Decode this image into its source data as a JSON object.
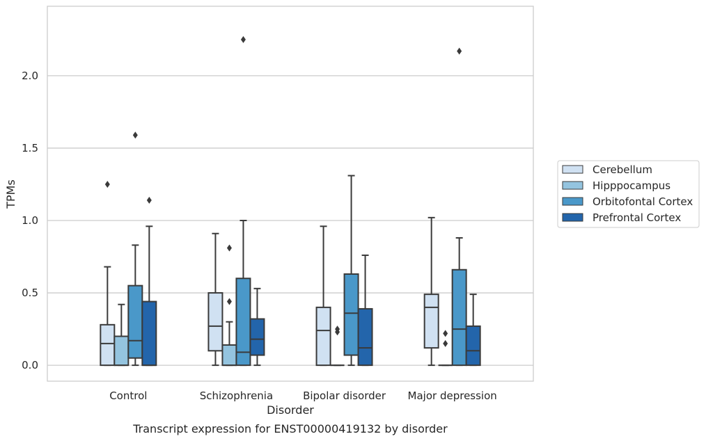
{
  "caption": "Transcript expression for ENST00000419132 by disorder",
  "chart_data": {
    "type": "box",
    "xlabel": "Disorder",
    "ylabel": "TPMs",
    "ylim": [
      -0.11,
      2.48
    ],
    "yticks": [
      0.0,
      0.5,
      1.0,
      1.5,
      2.0
    ],
    "ytick_labels": [
      "0.0",
      "0.5",
      "1.0",
      "1.5",
      "2.0"
    ],
    "grid": "horizontal",
    "legend_position": "right",
    "categories": [
      "Control",
      "Schizophrenia",
      "Bipolar disorder",
      "Major depression"
    ],
    "series": [
      {
        "name": "Cerebellum",
        "color": "#d0e1f2",
        "boxes": [
          {
            "whislo": 0.0,
            "q1": 0.0,
            "med": 0.15,
            "q3": 0.28,
            "whishi": 0.68,
            "fliers": [
              1.25
            ]
          },
          {
            "whislo": 0.0,
            "q1": 0.1,
            "med": 0.27,
            "q3": 0.5,
            "whishi": 0.91,
            "fliers": []
          },
          {
            "whislo": 0.0,
            "q1": 0.0,
            "med": 0.24,
            "q3": 0.4,
            "whishi": 0.96,
            "fliers": []
          },
          {
            "whislo": 0.0,
            "q1": 0.12,
            "med": 0.4,
            "q3": 0.49,
            "whishi": 1.02,
            "fliers": []
          }
        ]
      },
      {
        "name": "Hipppocampus",
        "color": "#94c4df",
        "boxes": [
          {
            "whislo": 0.0,
            "q1": 0.0,
            "med": 0.0,
            "q3": 0.2,
            "whishi": 0.42,
            "fliers": []
          },
          {
            "whislo": 0.0,
            "q1": 0.0,
            "med": 0.0,
            "q3": 0.14,
            "whishi": 0.3,
            "fliers": [
              0.44,
              0.81
            ]
          },
          {
            "whislo": 0.0,
            "q1": 0.0,
            "med": 0.0,
            "q3": 0.0,
            "whishi": 0.0,
            "fliers": [
              0.23,
              0.25
            ]
          },
          {
            "whislo": 0.0,
            "q1": 0.0,
            "med": 0.0,
            "q3": 0.0,
            "whishi": 0.0,
            "fliers": [
              0.15,
              0.22
            ]
          }
        ]
      },
      {
        "name": "Orbitofontal Cortex",
        "color": "#4a98c9",
        "boxes": [
          {
            "whislo": 0.0,
            "q1": 0.05,
            "med": 0.17,
            "q3": 0.55,
            "whishi": 0.83,
            "fliers": [
              1.59
            ]
          },
          {
            "whislo": 0.0,
            "q1": 0.0,
            "med": 0.09,
            "q3": 0.6,
            "whishi": 1.0,
            "fliers": [
              2.25
            ]
          },
          {
            "whislo": 0.0,
            "q1": 0.07,
            "med": 0.36,
            "q3": 0.63,
            "whishi": 1.31,
            "fliers": []
          },
          {
            "whislo": 0.0,
            "q1": 0.0,
            "med": 0.25,
            "q3": 0.66,
            "whishi": 0.88,
            "fliers": [
              2.17
            ]
          }
        ]
      },
      {
        "name": "Prefrontal Cortex",
        "color": "#2365ab",
        "boxes": [
          {
            "whislo": 0.0,
            "q1": 0.0,
            "med": 0.0,
            "q3": 0.44,
            "whishi": 0.96,
            "fliers": [
              1.14
            ]
          },
          {
            "whislo": 0.0,
            "q1": 0.07,
            "med": 0.18,
            "q3": 0.32,
            "whishi": 0.53,
            "fliers": []
          },
          {
            "whislo": 0.0,
            "q1": 0.0,
            "med": 0.12,
            "q3": 0.39,
            "whishi": 0.76,
            "fliers": []
          },
          {
            "whislo": 0.0,
            "q1": 0.0,
            "med": 0.1,
            "q3": 0.27,
            "whishi": 0.49,
            "fliers": []
          }
        ]
      }
    ]
  }
}
